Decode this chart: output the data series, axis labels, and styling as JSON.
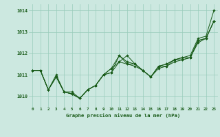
{
  "title": "Graphe pression niveau de la mer (hPa)",
  "background_color": "#cce8e0",
  "grid_color": "#99ccbb",
  "line_color": "#1a5c1a",
  "x_labels": [
    "0",
    "1",
    "2",
    "3",
    "4",
    "5",
    "6",
    "7",
    "8",
    "9",
    "10",
    "11",
    "12",
    "13",
    "14",
    "15",
    "16",
    "17",
    "18",
    "19",
    "20",
    "21",
    "22",
    "23"
  ],
  "ylim": [
    1009.5,
    1014.3
  ],
  "yticks": [
    1010,
    1011,
    1012,
    1013,
    1014
  ],
  "series": [
    [
      1011.2,
      1011.2,
      1010.3,
      1010.9,
      1010.2,
      1010.1,
      1009.9,
      1010.3,
      1010.5,
      1011.0,
      1011.1,
      1011.6,
      1011.5,
      1011.4,
      1011.2,
      1010.9,
      1011.3,
      1011.4,
      1011.6,
      1011.7,
      1011.8,
      1012.5,
      1012.7,
      1013.5
    ],
    [
      1011.2,
      1011.2,
      1010.3,
      1010.9,
      1010.2,
      1010.1,
      1009.9,
      1010.3,
      1010.5,
      1011.0,
      1011.1,
      1011.9,
      1011.5,
      1011.5,
      1011.2,
      1010.9,
      1011.4,
      1011.4,
      1011.7,
      1011.7,
      1011.8,
      1012.6,
      1012.7,
      1013.5
    ],
    [
      1011.2,
      1011.2,
      1010.3,
      1011.0,
      1010.2,
      1010.1,
      1009.9,
      1010.3,
      1010.5,
      1011.0,
      1011.3,
      1011.9,
      1011.6,
      1011.5,
      1011.2,
      1010.9,
      1011.4,
      1011.5,
      1011.7,
      1011.8,
      1011.8,
      1012.6,
      1012.7,
      1013.5
    ],
    [
      1011.2,
      1011.2,
      1010.3,
      1010.9,
      1010.2,
      1010.2,
      1009.9,
      1010.3,
      1010.5,
      1011.0,
      1011.3,
      1011.6,
      1011.9,
      1011.5,
      1011.2,
      1010.9,
      1011.4,
      1011.5,
      1011.7,
      1011.8,
      1011.9,
      1012.7,
      1012.8,
      1014.0
    ]
  ]
}
